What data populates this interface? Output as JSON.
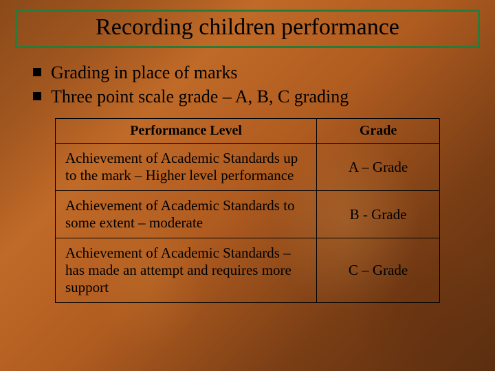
{
  "slide": {
    "title": "Recording children performance",
    "title_border_color": "#2a7a3a",
    "bullets": [
      "Grading in place of marks",
      "Three point scale grade – A, B, C grading"
    ],
    "table": {
      "type": "table",
      "columns": [
        "Performance Level",
        "Grade"
      ],
      "column_widths_pct": [
        68,
        32
      ],
      "border_color": "#000000",
      "header_fontsize": 20,
      "cell_fontsize": 21,
      "rows": [
        [
          "Achievement of Academic Standards up to the mark – Higher level performance",
          "A – Grade"
        ],
        [
          "Achievement of Academic Standards to some extent – moderate",
          "B - Grade"
        ],
        [
          "Achievement of Academic Standards – has made an attempt and requires more support",
          "C – Grade"
        ]
      ]
    },
    "background_colors": [
      "#8b4a1a",
      "#a0561f",
      "#c06a28",
      "#b05c20",
      "#7a3e15",
      "#5a2e10"
    ],
    "text_color": "#000000",
    "title_fontsize": 34,
    "bullet_fontsize": 26
  }
}
